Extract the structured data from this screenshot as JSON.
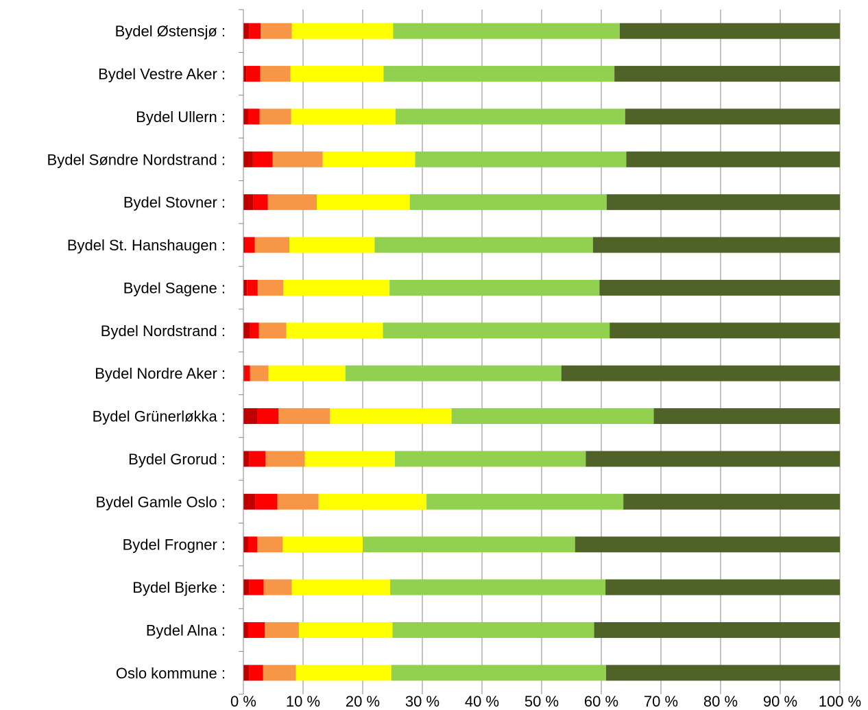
{
  "chart_data": {
    "type": "bar",
    "orientation": "horizontal",
    "stacked": "percent",
    "categories": [
      "Bydel Østensjø :",
      "Bydel Vestre Aker :",
      "Bydel Ullern :",
      "Bydel Søndre Nordstrand :",
      "Bydel Stovner :",
      "Bydel St. Hanshaugen :",
      "Bydel Sagene :",
      "Bydel Nordstrand :",
      "Bydel Nordre Aker :",
      "Bydel Grünerløkka :",
      "Bydel Grorud :",
      "Bydel Gamle Oslo :",
      "Bydel Frogner :",
      "Bydel Bjerke :",
      "Bydel Alna :",
      "Oslo kommune :"
    ],
    "series": [
      {
        "color": "#C00000",
        "values": [
          1.0,
          0.5,
          0.8,
          1.6,
          1.7,
          0.3,
          0.6,
          1.1,
          0.2,
          2.4,
          1.0,
          2.0,
          0.8,
          1.0,
          0.8,
          1.0
        ]
      },
      {
        "color": "#FF0000",
        "values": [
          1.9,
          2.3,
          1.9,
          3.3,
          2.4,
          1.6,
          1.8,
          1.5,
          0.9,
          3.5,
          2.7,
          3.7,
          1.5,
          2.4,
          2.8,
          2.3
        ]
      },
      {
        "color": "#F79646",
        "values": [
          5.2,
          5.1,
          5.3,
          8.4,
          8.2,
          5.8,
          4.3,
          4.6,
          3.1,
          8.6,
          6.6,
          6.9,
          4.3,
          4.7,
          5.7,
          5.5
        ]
      },
      {
        "color": "#FFFF00",
        "values": [
          17.0,
          15.6,
          17.5,
          15.5,
          15.6,
          14.3,
          17.8,
          16.2,
          12.9,
          20.4,
          15.1,
          18.1,
          13.4,
          16.5,
          15.7,
          16.0
        ]
      },
      {
        "color": "#92D050",
        "values": [
          38.0,
          38.7,
          38.5,
          35.4,
          33.0,
          36.6,
          35.2,
          38.0,
          36.2,
          33.9,
          32.0,
          33.0,
          35.6,
          36.1,
          33.8,
          36.0
        ]
      },
      {
        "color": "#4F6228",
        "values": [
          36.9,
          37.8,
          36.0,
          35.8,
          39.1,
          41.4,
          40.3,
          38.6,
          46.7,
          31.2,
          42.6,
          36.3,
          44.4,
          39.3,
          41.2,
          39.2
        ]
      }
    ],
    "xlim": [
      0,
      100
    ],
    "xticks": [
      "0 %",
      "10 %",
      "20 %",
      "30 %",
      "40 %",
      "50 %",
      "60 %",
      "70 %",
      "80 %",
      "90 %",
      "100 %"
    ],
    "grid": true,
    "legend": "none"
  }
}
